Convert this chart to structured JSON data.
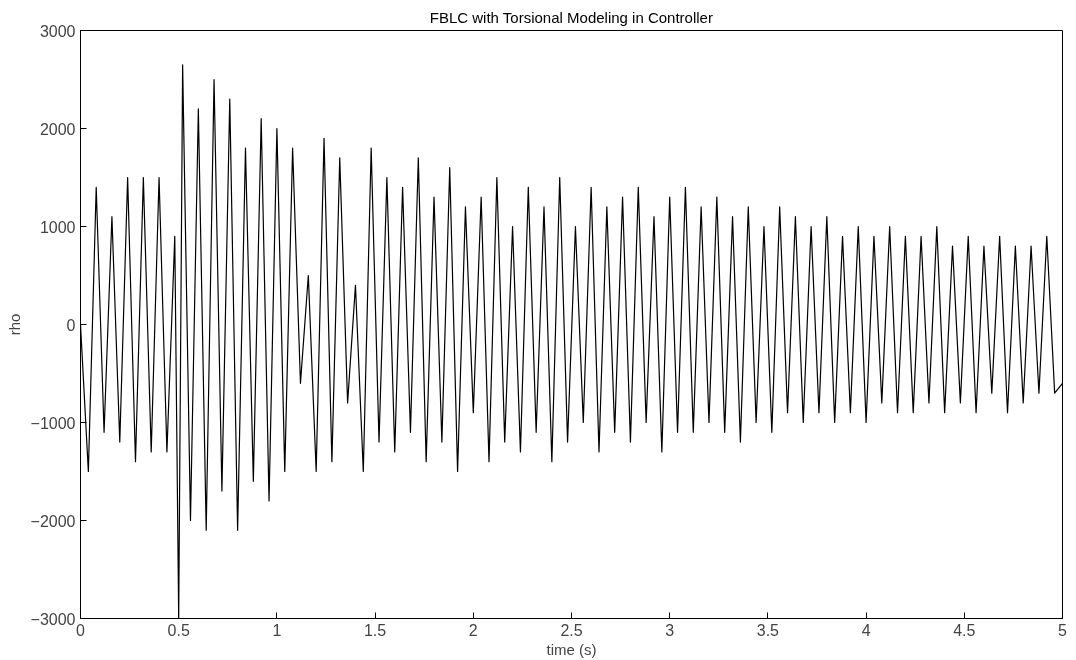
{
  "chart_data": {
    "type": "line",
    "title": "FBLC with Torsional Modeling in Controller",
    "xlabel": "time (s)",
    "ylabel": "rho",
    "xlim": [
      0,
      5
    ],
    "ylim": [
      -3000,
      3000
    ],
    "xticks": [
      0,
      0.5,
      1,
      1.5,
      2,
      2.5,
      3,
      3.5,
      4,
      4.5,
      5
    ],
    "yticks": [
      {
        "value": -3000,
        "label": "−3000"
      },
      {
        "value": -2000,
        "label": "−2000"
      },
      {
        "value": -1000,
        "label": "−1000"
      },
      0,
      1000,
      2000,
      3000
    ],
    "grid": false,
    "marker": "none",
    "line_style": "solid",
    "series": [
      {
        "color": "#000000",
        "x": [
          0,
          0.04,
          0.08,
          0.12,
          0.16,
          0.2,
          0.24,
          0.28,
          0.32,
          0.36,
          0.4,
          0.44,
          0.48,
          0.5,
          0.52,
          0.56,
          0.6,
          0.64,
          0.68,
          0.72,
          0.76,
          0.8,
          0.84,
          0.88,
          0.92,
          0.96,
          1.0,
          1.04,
          1.08,
          1.12,
          1.16,
          1.2,
          1.24,
          1.28,
          1.32,
          1.36,
          1.4,
          1.44,
          1.48,
          1.52,
          1.56,
          1.6,
          1.64,
          1.68,
          1.72,
          1.76,
          1.8,
          1.84,
          1.88,
          1.92,
          1.96,
          2.0,
          2.04,
          2.08,
          2.12,
          2.16,
          2.2,
          2.24,
          2.28,
          2.32,
          2.36,
          2.4,
          2.44,
          2.48,
          2.52,
          2.56,
          2.6,
          2.64,
          2.68,
          2.72,
          2.76,
          2.8,
          2.84,
          2.88,
          2.92,
          2.96,
          3.0,
          3.04,
          3.08,
          3.12,
          3.16,
          3.2,
          3.24,
          3.28,
          3.32,
          3.36,
          3.4,
          3.44,
          3.48,
          3.52,
          3.56,
          3.6,
          3.64,
          3.68,
          3.72,
          3.76,
          3.8,
          3.84,
          3.88,
          3.92,
          3.96,
          4.0,
          4.04,
          4.08,
          4.12,
          4.16,
          4.2,
          4.24,
          4.28,
          4.32,
          4.36,
          4.4,
          4.44,
          4.48,
          4.52,
          4.56,
          4.6,
          4.64,
          4.68,
          4.72,
          4.76,
          4.8,
          4.84,
          4.88,
          4.92,
          4.96,
          5.0
        ],
        "values": [
          0,
          -1500,
          1400,
          -1100,
          1100,
          -1200,
          1500,
          -1400,
          1500,
          -1300,
          1500,
          -1300,
          900,
          -3000,
          2650,
          -2000,
          2200,
          -2100,
          2500,
          -1700,
          2300,
          -2100,
          1800,
          -1600,
          2100,
          -1800,
          2000,
          -1500,
          1800,
          -600,
          500,
          -1500,
          1900,
          -1400,
          1700,
          -800,
          400,
          -1500,
          1800,
          -1200,
          1500,
          -1300,
          1400,
          -1100,
          1700,
          -1400,
          1300,
          -1200,
          1600,
          -1500,
          1200,
          -900,
          1300,
          -1400,
          1500,
          -1200,
          1000,
          -1300,
          1400,
          -1100,
          1200,
          -1400,
          1500,
          -1200,
          1000,
          -1000,
          1400,
          -1300,
          1200,
          -1100,
          1300,
          -1200,
          1400,
          -1000,
          1100,
          -1300,
          1300,
          -1100,
          1400,
          -1100,
          1200,
          -1000,
          1300,
          -1100,
          1100,
          -1200,
          1200,
          -1000,
          1000,
          -1100,
          1200,
          -900,
          1100,
          -1000,
          1000,
          -900,
          1100,
          -1000,
          900,
          -900,
          1000,
          -1000,
          900,
          -800,
          1000,
          -900,
          900,
          -900,
          900,
          -800,
          1000,
          -900,
          800,
          -800,
          900,
          -900,
          800,
          -700,
          900,
          -900,
          800,
          -800,
          800,
          -700,
          900,
          -700,
          -600
        ]
      }
    ]
  }
}
